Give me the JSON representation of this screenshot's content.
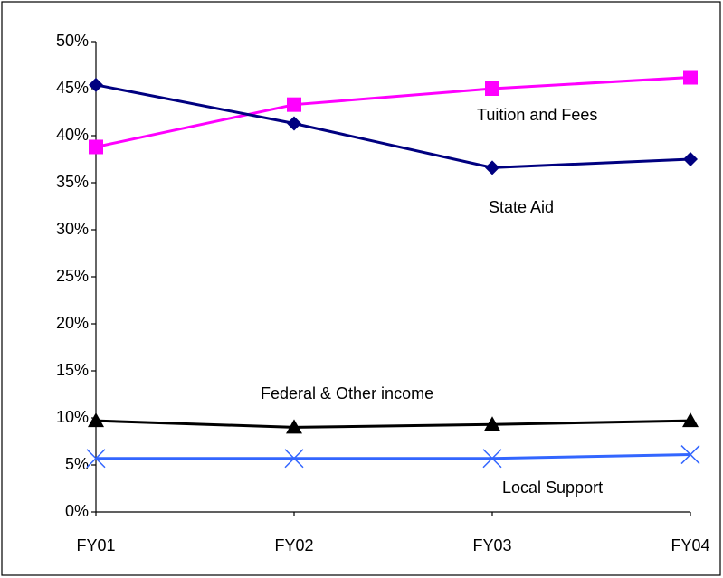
{
  "chart_data": {
    "type": "line",
    "categories": [
      "FY01",
      "FY02",
      "FY03",
      "FY04"
    ],
    "series": [
      {
        "name": "Tuition and Fees",
        "color": "#ff00ff",
        "marker": "square",
        "values": [
          38.8,
          43.3,
          45.0,
          46.2
        ]
      },
      {
        "name": "State Aid",
        "color": "#000080",
        "marker": "diamond",
        "values": [
          45.4,
          41.3,
          36.6,
          37.5
        ]
      },
      {
        "name": "Federal & Other income",
        "color": "#000000",
        "marker": "triangle",
        "values": [
          9.7,
          9.0,
          9.3,
          9.7
        ]
      },
      {
        "name": "Local Support",
        "color": "#3366ff",
        "marker": "x",
        "values": [
          5.7,
          5.7,
          5.7,
          6.1
        ]
      }
    ],
    "ylim": [
      0,
      50
    ],
    "yticks": [
      {
        "value": 0,
        "label": "0%"
      },
      {
        "value": 5,
        "label": "5%"
      },
      {
        "value": 10,
        "label": "10%"
      },
      {
        "value": 15,
        "label": "15%"
      },
      {
        "value": 20,
        "label": "20%"
      },
      {
        "value": 25,
        "label": "25%"
      },
      {
        "value": 30,
        "label": "30%"
      },
      {
        "value": 35,
        "label": "35%"
      },
      {
        "value": 40,
        "label": "40%"
      },
      {
        "value": 45,
        "label": "45%"
      },
      {
        "value": 50,
        "label": "50%"
      }
    ],
    "grid": false
  }
}
